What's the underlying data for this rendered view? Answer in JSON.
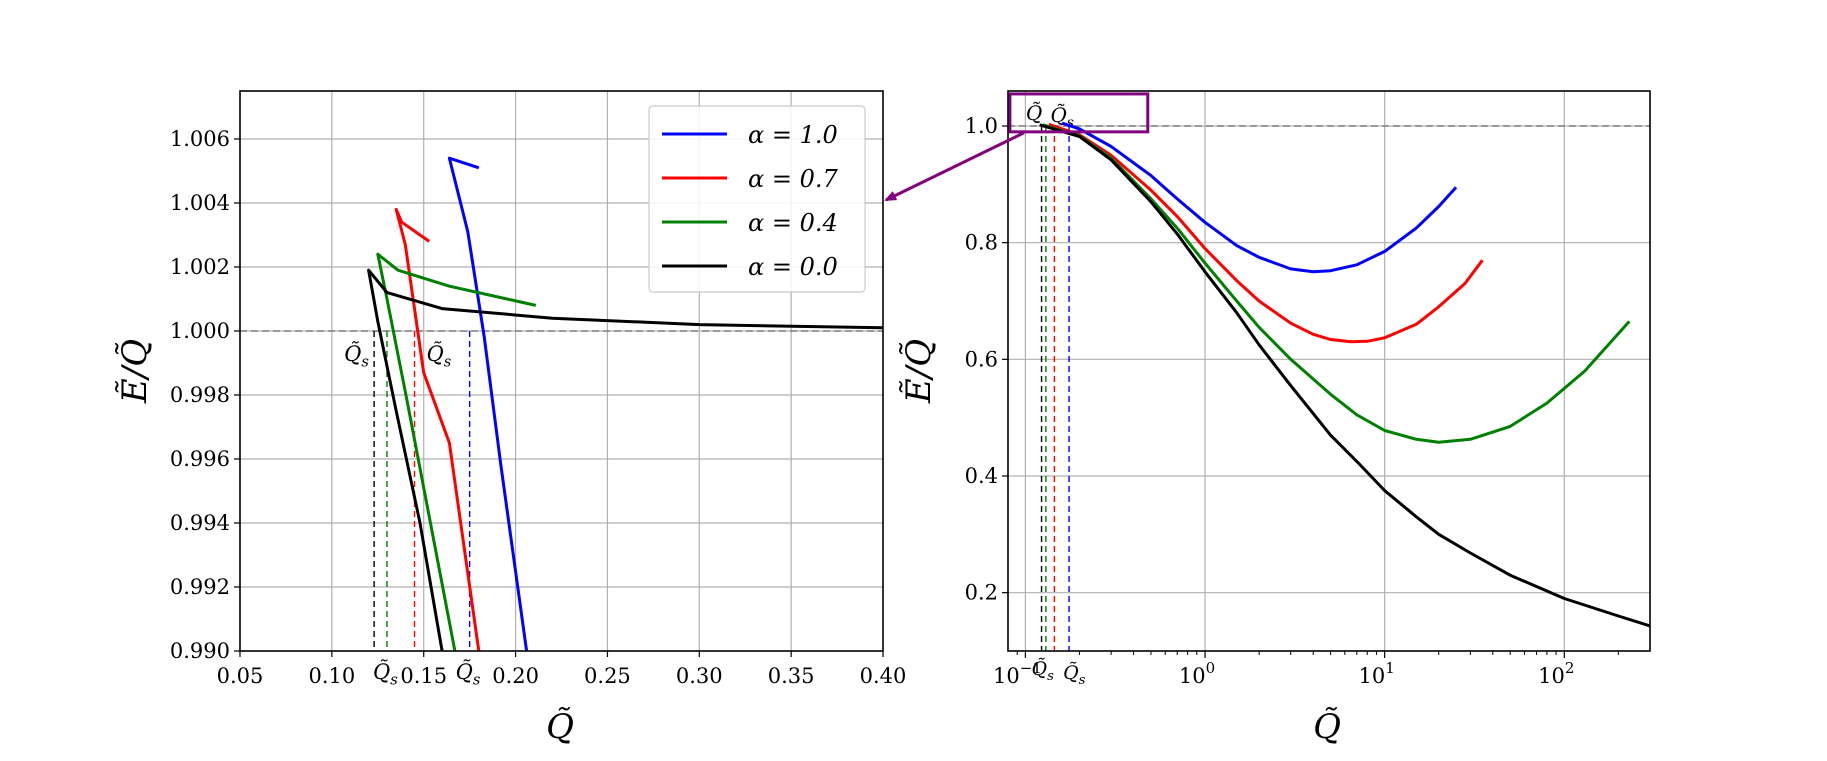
{
  "chart_data": [
    {
      "type": "line",
      "panel": "left (zoom)",
      "xlabel": "Q̃",
      "ylabel": "Ẽ/Q̃",
      "xlim": [
        0.05,
        0.4
      ],
      "ylim": [
        0.99,
        1.0075
      ],
      "x_ticks": [
        0.05,
        0.1,
        0.15,
        0.2,
        0.25,
        0.3,
        0.35,
        0.4
      ],
      "x_tick_labels": [
        "0.05",
        "0.10",
        "0.15",
        "0.20",
        "0.25",
        "0.30",
        "0.35",
        "0.40"
      ],
      "y_ticks": [
        0.99,
        0.992,
        0.994,
        0.996,
        0.998,
        1.0,
        1.002,
        1.004,
        1.006
      ],
      "y_tick_labels": [
        "0.990",
        "0.992",
        "0.994",
        "0.996",
        "0.998",
        "1.000",
        "1.002",
        "1.004",
        "1.006"
      ],
      "grid": true,
      "reference_line": {
        "y": 1.0,
        "style": "dashed",
        "color": "#808080"
      },
      "legend": {
        "placement": "top-right",
        "entries": [
          {
            "label": "α = 1.0",
            "color": "#0000ff"
          },
          {
            "label": "α = 0.7",
            "color": "#ff0000"
          },
          {
            "label": "α = 0.4",
            "color": "#008000"
          },
          {
            "label": "α = 0.0",
            "color": "#000000"
          }
        ]
      },
      "series": [
        {
          "name": "α = 1.0",
          "color": "#0000ff",
          "points": [
            [
              0.18,
              1.0051
            ],
            [
              0.164,
              1.0054
            ],
            [
              0.174,
              1.0031
            ],
            [
              0.183,
              0.9998
            ],
            [
              0.192,
              0.9958
            ],
            [
              0.206,
              0.99
            ]
          ]
        },
        {
          "name": "α = 0.7",
          "color": "#ff0000",
          "points": [
            [
              0.153,
              1.0028
            ],
            [
              0.138,
              1.0034
            ],
            [
              0.135,
              1.0038
            ],
            [
              0.14,
              1.0027
            ],
            [
              0.15,
              0.9987
            ],
            [
              0.164,
              0.9965
            ],
            [
              0.18,
              0.99
            ]
          ]
        },
        {
          "name": "α = 0.4",
          "color": "#008000",
          "points": [
            [
              0.211,
              1.0008
            ],
            [
              0.164,
              1.0014
            ],
            [
              0.136,
              1.0019
            ],
            [
              0.125,
              1.0024
            ],
            [
              0.13,
              1.001
            ],
            [
              0.141,
              0.9978
            ],
            [
              0.152,
              0.9945
            ],
            [
              0.167,
              0.99
            ]
          ]
        },
        {
          "name": "α = 0.0",
          "color": "#000000",
          "points": [
            [
              0.4,
              1.0001
            ],
            [
              0.3,
              1.0002
            ],
            [
              0.22,
              1.0004
            ],
            [
              0.16,
              1.0007
            ],
            [
              0.13,
              1.0012
            ],
            [
              0.12,
              1.0019
            ],
            [
              0.125,
              1.0003
            ],
            [
              0.135,
              0.9975
            ],
            [
              0.148,
              0.994
            ],
            [
              0.16,
              0.99
            ]
          ]
        }
      ],
      "qs_markers": [
        {
          "x": 0.123,
          "color": "#000000",
          "label": "Q̃s",
          "label_pos": "upper"
        },
        {
          "x": 0.13,
          "color": "#008000",
          "label": "Q̃s",
          "label_pos": "axis"
        },
        {
          "x": 0.145,
          "color": "#ff0000",
          "label": "Q̃s",
          "label_pos": "upper"
        },
        {
          "x": 0.175,
          "color": "#0000ff",
          "label": "Q̃s",
          "label_pos": "axis"
        }
      ]
    },
    {
      "type": "line",
      "panel": "right (full, log x)",
      "xscale": "log",
      "xlabel": "Q̃",
      "ylabel": "Ẽ/Q̃",
      "xlim": [
        0.08,
        300
      ],
      "ylim": [
        0.1,
        1.06
      ],
      "x_ticks": [
        0.1,
        1,
        10,
        100
      ],
      "x_tick_labels": [
        "10",
        "10",
        "10",
        "10"
      ],
      "x_tick_exponents": [
        "−1",
        "0",
        "1",
        "2"
      ],
      "y_ticks": [
        0.2,
        0.4,
        0.6,
        0.8,
        1.0
      ],
      "y_tick_labels": [
        "0.2",
        "0.4",
        "0.6",
        "0.8",
        "1.0"
      ],
      "grid": true,
      "reference_line": {
        "y": 1.0,
        "style": "dashed",
        "color": "#808080"
      },
      "inset_box": {
        "x": [
          0.082,
          0.48
        ],
        "y": [
          0.99,
          1.055
        ],
        "color": "#800080"
      },
      "series": [
        {
          "name": "α = 1.0",
          "color": "#0000ff",
          "points": [
            [
              0.16,
              1.005
            ],
            [
              0.2,
              0.995
            ],
            [
              0.3,
              0.965
            ],
            [
              0.5,
              0.915
            ],
            [
              0.7,
              0.875
            ],
            [
              1.0,
              0.835
            ],
            [
              1.5,
              0.795
            ],
            [
              2.0,
              0.775
            ],
            [
              3.0,
              0.755
            ],
            [
              4.0,
              0.75
            ],
            [
              5.0,
              0.752
            ],
            [
              7.0,
              0.762
            ],
            [
              10,
              0.785
            ],
            [
              15,
              0.825
            ],
            [
              20,
              0.862
            ],
            [
              25,
              0.895
            ]
          ]
        },
        {
          "name": "α = 0.7",
          "color": "#ff0000",
          "points": [
            [
              0.135,
              1.003
            ],
            [
              0.2,
              0.985
            ],
            [
              0.3,
              0.95
            ],
            [
              0.5,
              0.89
            ],
            [
              0.7,
              0.845
            ],
            [
              1.0,
              0.79
            ],
            [
              1.5,
              0.735
            ],
            [
              2.0,
              0.7
            ],
            [
              3.0,
              0.662
            ],
            [
              4.0,
              0.643
            ],
            [
              5.0,
              0.634
            ],
            [
              6.5,
              0.63
            ],
            [
              8.0,
              0.631
            ],
            [
              10,
              0.637
            ],
            [
              15,
              0.66
            ],
            [
              20,
              0.69
            ],
            [
              28,
              0.73
            ],
            [
              35,
              0.77
            ]
          ]
        },
        {
          "name": "α = 0.4",
          "color": "#008000",
          "points": [
            [
              0.125,
              1.002
            ],
            [
              0.2,
              0.983
            ],
            [
              0.3,
              0.945
            ],
            [
              0.5,
              0.875
            ],
            [
              0.7,
              0.825
            ],
            [
              1.0,
              0.765
            ],
            [
              1.5,
              0.7
            ],
            [
              2.0,
              0.655
            ],
            [
              3.0,
              0.6
            ],
            [
              5.0,
              0.54
            ],
            [
              7.0,
              0.505
            ],
            [
              10,
              0.478
            ],
            [
              15,
              0.463
            ],
            [
              20,
              0.458
            ],
            [
              30,
              0.463
            ],
            [
              50,
              0.485
            ],
            [
              80,
              0.525
            ],
            [
              130,
              0.58
            ],
            [
              230,
              0.665
            ]
          ]
        },
        {
          "name": "α = 0.0",
          "color": "#000000",
          "points": [
            [
              0.12,
              1.002
            ],
            [
              0.2,
              0.982
            ],
            [
              0.3,
              0.942
            ],
            [
              0.5,
              0.87
            ],
            [
              0.7,
              0.815
            ],
            [
              1.0,
              0.75
            ],
            [
              1.5,
              0.68
            ],
            [
              2.0,
              0.625
            ],
            [
              3.0,
              0.555
            ],
            [
              5.0,
              0.47
            ],
            [
              7.0,
              0.425
            ],
            [
              10,
              0.375
            ],
            [
              15,
              0.33
            ],
            [
              20,
              0.3
            ],
            [
              30,
              0.268
            ],
            [
              50,
              0.23
            ],
            [
              100,
              0.19
            ],
            [
              200,
              0.16
            ],
            [
              300,
              0.143
            ]
          ]
        }
      ],
      "qs_markers": [
        {
          "x": 0.123,
          "color": "#000000",
          "label": "Q̃s"
        },
        {
          "x": 0.13,
          "color": "#008000",
          "label": "Q̃"
        },
        {
          "x": 0.145,
          "color": "#ff0000",
          "label": "Q̃s"
        },
        {
          "x": 0.175,
          "color": "#0000ff",
          "label": "Q̃s"
        }
      ]
    }
  ],
  "colors": {
    "arrow": "#800080",
    "grid": "#b0b0b0",
    "reference": "#808080"
  }
}
